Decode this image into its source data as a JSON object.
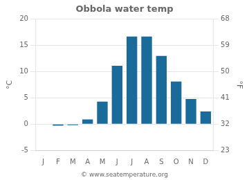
{
  "chart_data": {
    "type": "bar",
    "title": "Obbola water temp",
    "categories": [
      "J",
      "F",
      "M",
      "A",
      "M",
      "J",
      "J",
      "A",
      "S",
      "O",
      "N",
      "D"
    ],
    "values": [
      0.0,
      -0.3,
      -0.2,
      0.9,
      4.3,
      11.1,
      16.7,
      16.7,
      13.0,
      8.1,
      4.8,
      2.4
    ],
    "color": "#1a6a9a",
    "ylabel": "°C",
    "ylim": [
      -5,
      20
    ],
    "yticks": [
      -5,
      0,
      5,
      10,
      15,
      20
    ],
    "y2label": "°F",
    "y2lim": [
      23,
      68
    ],
    "y2ticks": [
      23,
      32,
      41,
      50,
      59,
      68
    ],
    "grid": true,
    "annotation": "© www.seatemperature.org"
  }
}
